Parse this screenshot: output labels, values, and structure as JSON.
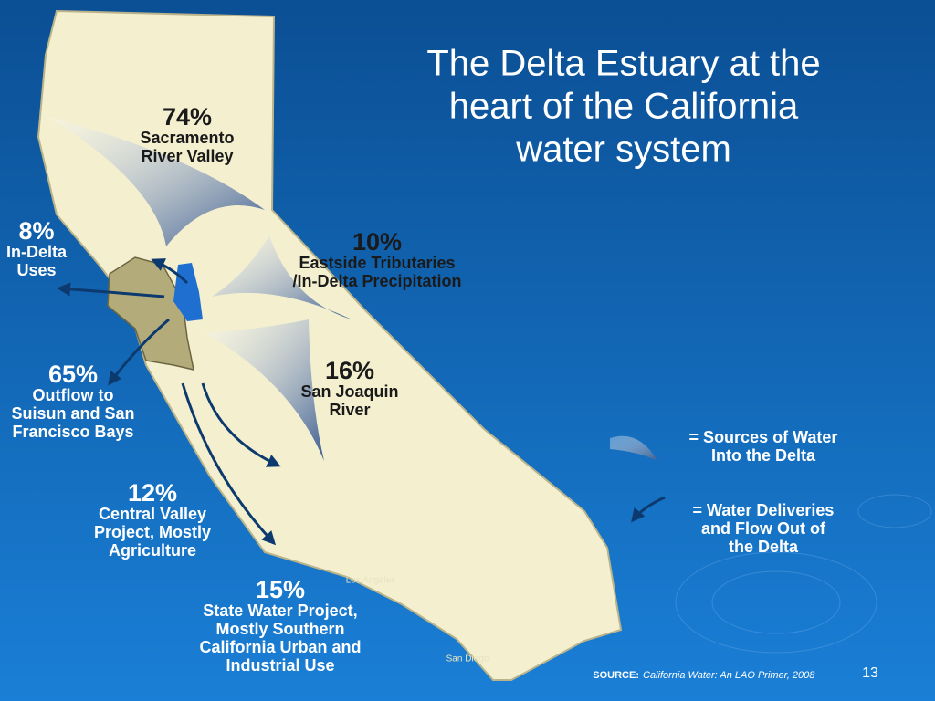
{
  "title": [
    "The Delta Estuary at the",
    "heart of the California",
    "water system"
  ],
  "flows": [
    {
      "percent": "74%",
      "label": [
        "Sacramento",
        "River Valley"
      ]
    },
    {
      "percent": "8%",
      "label": [
        "In-Delta",
        "Uses"
      ]
    },
    {
      "percent": "10%",
      "label": [
        "Eastside Tributaries",
        "/In-Delta Precipitation"
      ]
    },
    {
      "percent": "65%",
      "label": [
        "Outflow to",
        "Suisun and San",
        "Francisco Bays"
      ]
    },
    {
      "percent": "16%",
      "label": [
        "San Joaquin",
        "River"
      ]
    },
    {
      "percent": "12%",
      "label": [
        "Central Valley",
        "Project, Mostly",
        "Agriculture"
      ]
    },
    {
      "percent": "15%",
      "label": [
        "State Water Project,",
        "Mostly Southern",
        "California Urban and",
        "Industrial Use"
      ]
    }
  ],
  "legend": [
    {
      "label": [
        "= Sources of Water",
        "Into the Delta"
      ]
    },
    {
      "label": [
        "= Water Deliveries",
        "and Flow Out of",
        "the Delta"
      ]
    }
  ],
  "cities": [
    "Los Angeles",
    "San Diego"
  ],
  "source": {
    "prefix": "SOURCE:",
    "text": "California Water: An LAO Primer, 2008"
  },
  "page_number": "13"
}
